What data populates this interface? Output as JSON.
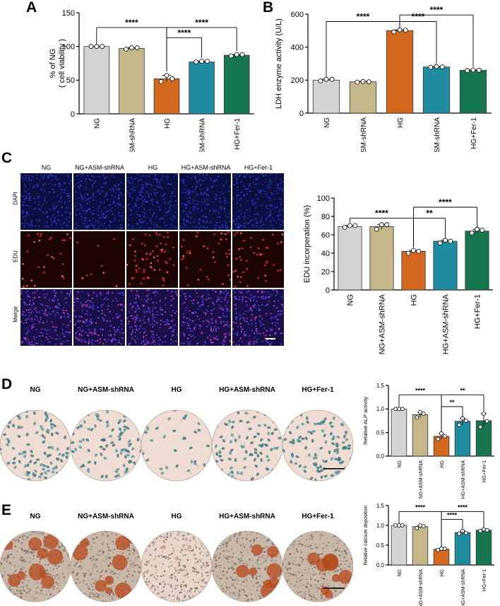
{
  "panels": {
    "A": "A",
    "B": "B",
    "C": "C",
    "D": "D",
    "E": "E"
  },
  "colors": {
    "NG": "#d4d4d4",
    "NG+ASM-shRNA": "#c4b88a",
    "HG": "#d2691e",
    "HG+ASM-shRNA": "#1f8ca0",
    "HG+Fer-1": "#167650"
  },
  "groups": [
    "NG",
    "NG+ASM-shRNA",
    "HG",
    "HG+ASM-shRNA",
    "HG+Fer-1"
  ],
  "panelC": {
    "columns": [
      "NG",
      "NG+ASM-shRNA",
      "HG",
      "HG+ASM-shRNA",
      "HG+Fer-1"
    ],
    "rows": [
      "DAPI",
      "EDU",
      "Merge"
    ]
  },
  "panelD": {
    "dishes": [
      "NG",
      "NG+ASM-shRNA",
      "HG",
      "HG+ASM-shRNA",
      "HG+Fer-1"
    ]
  },
  "panelE": {
    "dishes": [
      "NG",
      "NG+ASM-shRNA",
      "HG",
      "HG+ASM-shRNA",
      "HG+Fer-1"
    ]
  },
  "chart_data": [
    {
      "id": "A",
      "type": "bar",
      "categories": [
        "NG",
        "NG+ASM-shRNA",
        "HG",
        "HG+ASM-shRNA",
        "HG+Fer-1"
      ],
      "values": [
        100,
        97,
        52,
        77,
        87
      ],
      "points": [
        [
          100,
          100,
          100
        ],
        [
          96,
          98,
          98
        ],
        [
          48,
          57,
          52
        ],
        [
          77,
          78,
          78
        ],
        [
          86,
          88,
          88
        ]
      ],
      "ylabel": "% of NG",
      "ylabel2": "( cell viability )",
      "ylim": [
        0,
        150
      ],
      "yticks": [
        "0",
        "50",
        "100",
        "150"
      ],
      "sig": [
        "****",
        "****",
        "****"
      ]
    },
    {
      "id": "B",
      "type": "bar",
      "categories": [
        "NG",
        "NG+ASM-shRNA",
        "HG",
        "HG+ASM-shRNA",
        "HG+Fer-1"
      ],
      "values": [
        200,
        190,
        500,
        280,
        260
      ],
      "points": [
        [
          195,
          205,
          205
        ],
        [
          188,
          192,
          190
        ],
        [
          492,
          505,
          503
        ],
        [
          278,
          282,
          280
        ],
        [
          258,
          262,
          260
        ]
      ],
      "ylabel": "LDH enzyme activity (U/L)",
      "ylim": [
        0,
        600
      ],
      "yticks": [
        "0",
        "200",
        "400",
        "600"
      ],
      "sig": [
        "****",
        "****",
        "****"
      ]
    },
    {
      "id": "C",
      "type": "bar",
      "categories": [
        "NG",
        "NG+ASM-shRNA",
        "HG",
        "HG+ASM-shRNA",
        "HG+Fer-1"
      ],
      "values": [
        69,
        69,
        42,
        53,
        64
      ],
      "points": [
        [
          68,
          70,
          70
        ],
        [
          66,
          71,
          71
        ],
        [
          40,
          43,
          42
        ],
        [
          51,
          54,
          53
        ],
        [
          62,
          66,
          65
        ]
      ],
      "ylabel": "EDU incorperation (%)",
      "ylim": [
        0,
        100
      ],
      "yticks": [
        "0",
        "20",
        "40",
        "60",
        "80",
        "100"
      ],
      "sig": [
        "****",
        "**",
        "****"
      ]
    },
    {
      "id": "D",
      "type": "bar",
      "categories": [
        "NG",
        "NG+ASM-shRNA",
        "HG",
        "HG+ASM-shRNA",
        "HG+Fer-1"
      ],
      "values": [
        1.0,
        0.88,
        0.42,
        0.74,
        0.75
      ],
      "points": [
        [
          1.0,
          1.0,
          1.0
        ],
        [
          0.82,
          0.93,
          0.9
        ],
        [
          0.36,
          0.48,
          0.42
        ],
        [
          0.66,
          0.8,
          0.75
        ],
        [
          0.62,
          0.9,
          0.74
        ]
      ],
      "ylabel": "Relative ALP activity",
      "ylim": [
        0,
        1.5
      ],
      "yticks": [
        "0.0",
        "0.5",
        "1.0",
        "1.5"
      ],
      "sig": [
        "****",
        "**",
        "**",
        "**"
      ]
    },
    {
      "id": "E",
      "type": "bar",
      "categories": [
        "NG",
        "NG+ASM-shRNA",
        "HG",
        "HG+ASM-shRNA",
        "HG+Fer-1"
      ],
      "values": [
        1.0,
        0.97,
        0.4,
        0.82,
        0.88
      ],
      "points": [
        [
          1.0,
          1.0,
          1.0
        ],
        [
          0.93,
          1.0,
          0.98
        ],
        [
          0.38,
          0.41,
          0.41
        ],
        [
          0.79,
          0.86,
          0.81
        ],
        [
          0.86,
          0.9,
          0.88
        ]
      ],
      "ylabel": "Relative calcium deposition",
      "ylim": [
        0,
        1.5
      ],
      "yticks": [
        "0.0",
        "0.5",
        "1.0",
        "1.5"
      ],
      "sig": [
        "****",
        "****",
        "****"
      ]
    }
  ]
}
